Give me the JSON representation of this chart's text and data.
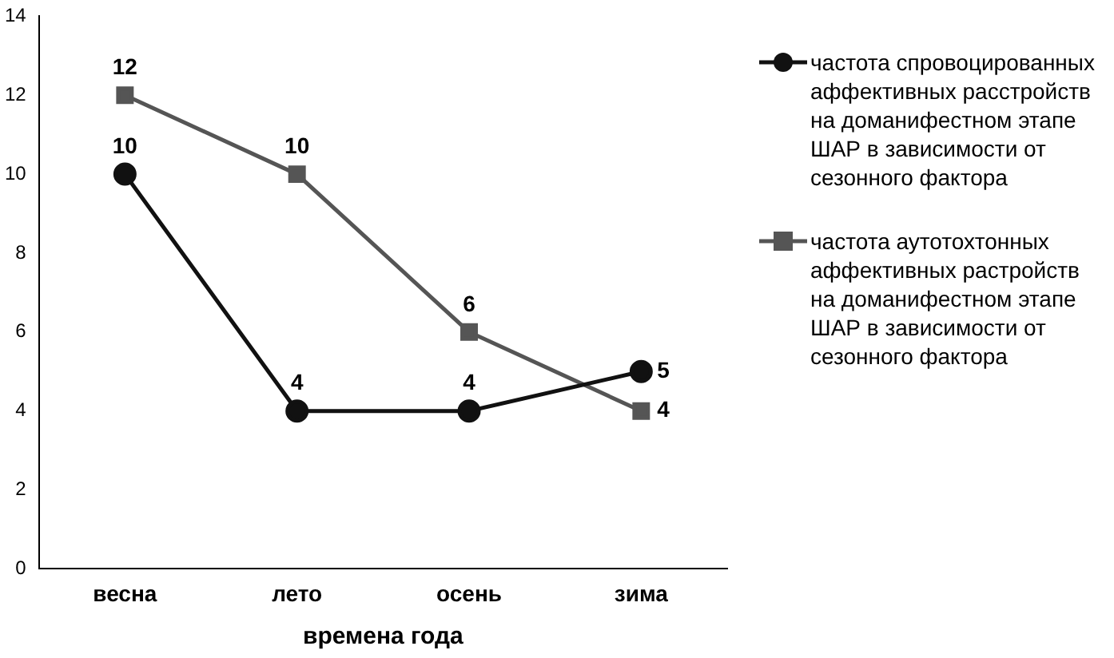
{
  "chart_data": {
    "type": "line",
    "xlabel": "времена года",
    "categories": [
      "весна",
      "лето",
      "осень",
      "зима"
    ],
    "series": [
      {
        "name": "частота спровоцированных аффективных расстройств на доманифестном этапе ШАР в зависимости от сезонного фактора",
        "color": "#111111",
        "marker": "circle",
        "values": [
          10,
          4,
          4,
          5
        ]
      },
      {
        "name": "частота аутотохтонных аффективных растройств на доманифестном этапе ШАР в зависимости от сезонного фактора",
        "color": "#555555",
        "marker": "square",
        "values": [
          12,
          10,
          6,
          4
        ]
      }
    ],
    "ylim": [
      0,
      14
    ],
    "yticks": [
      0,
      2,
      4,
      6,
      8,
      10,
      12,
      14
    ],
    "grid": false,
    "legend": "right",
    "data_labels": true
  }
}
